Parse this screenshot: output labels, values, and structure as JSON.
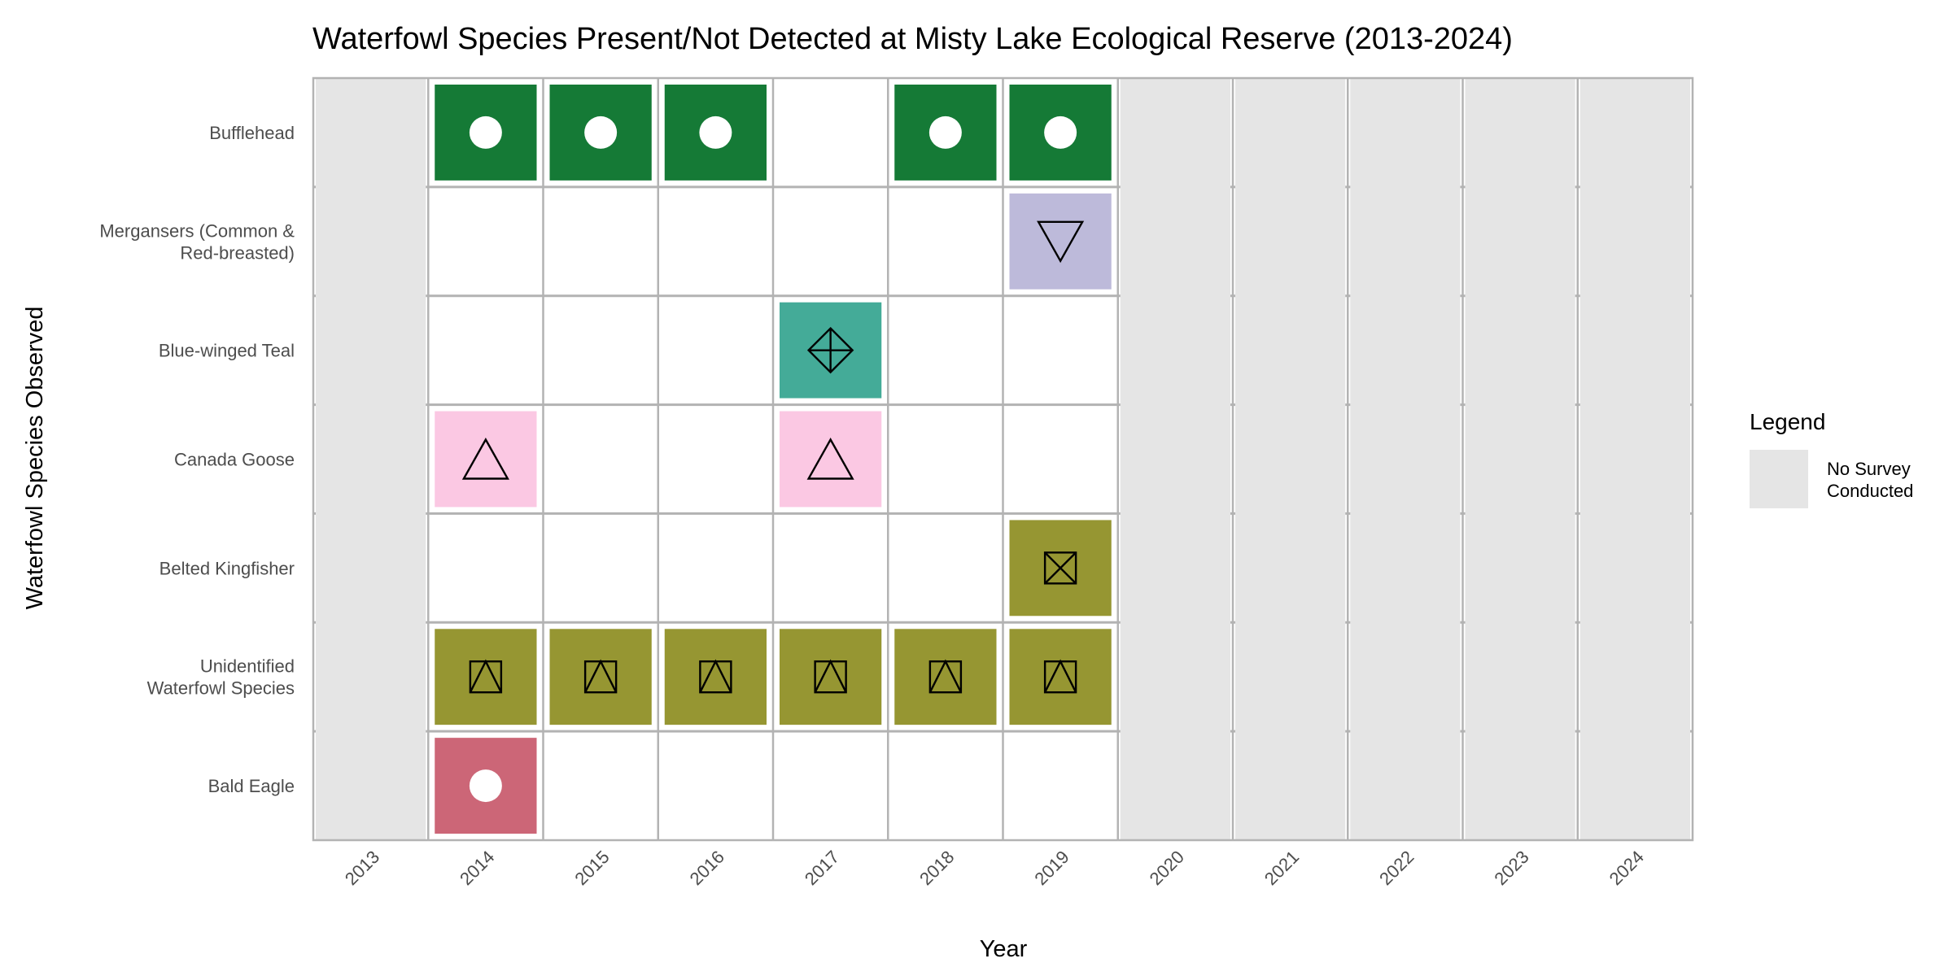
{
  "chart_data": {
    "type": "heatmap",
    "title": "Waterfowl Species Present/Not Detected at Misty Lake Ecological Reserve (2013-2024)",
    "xlabel": "Year",
    "ylabel": "Waterfowl Species Observed",
    "x": [
      "2013",
      "2014",
      "2015",
      "2016",
      "2017",
      "2018",
      "2019",
      "2020",
      "2021",
      "2022",
      "2023",
      "2024"
    ],
    "y": [
      [
        "Bufflehead"
      ],
      [
        "Mergansers (Common &",
        "Red-breasted)"
      ],
      [
        "Blue-winged Teal"
      ],
      [
        "Canada Goose"
      ],
      [
        "Belted Kingfisher"
      ],
      [
        "Unidentified",
        "Waterfowl Species"
      ],
      [
        "Bald Eagle"
      ]
    ],
    "no_survey_years": [
      "2013",
      "2020",
      "2021",
      "2022",
      "2023",
      "2024"
    ],
    "species_style": [
      {
        "color": "#157a36",
        "marker": "filled-circle"
      },
      {
        "color": "#bdbada",
        "marker": "triangle-down"
      },
      {
        "color": "#44ab98",
        "marker": "square-cross"
      },
      {
        "color": "#fbc8e3",
        "marker": "triangle-up"
      },
      {
        "color": "#969632",
        "marker": "square-x"
      },
      {
        "color": "#969632",
        "marker": "square-triangle"
      },
      {
        "color": "#cc6677",
        "marker": "filled-circle"
      }
    ],
    "present": [
      [
        "2014",
        "2015",
        "2016",
        "2018",
        "2019"
      ],
      [
        "2019"
      ],
      [
        "2017"
      ],
      [
        "2014",
        "2017"
      ],
      [
        "2019"
      ],
      [
        "2014",
        "2015",
        "2016",
        "2017",
        "2018",
        "2019"
      ],
      [
        "2014"
      ]
    ],
    "legend": {
      "title": "Legend",
      "entries": [
        {
          "label": [
            "No Survey",
            "Conducted"
          ],
          "color": "#e5e5e5"
        }
      ],
      "position": "right"
    },
    "colors": {
      "no_survey": "#e5e5e5",
      "grid": "#b3b3b3",
      "border": "#b3b3b3"
    }
  }
}
